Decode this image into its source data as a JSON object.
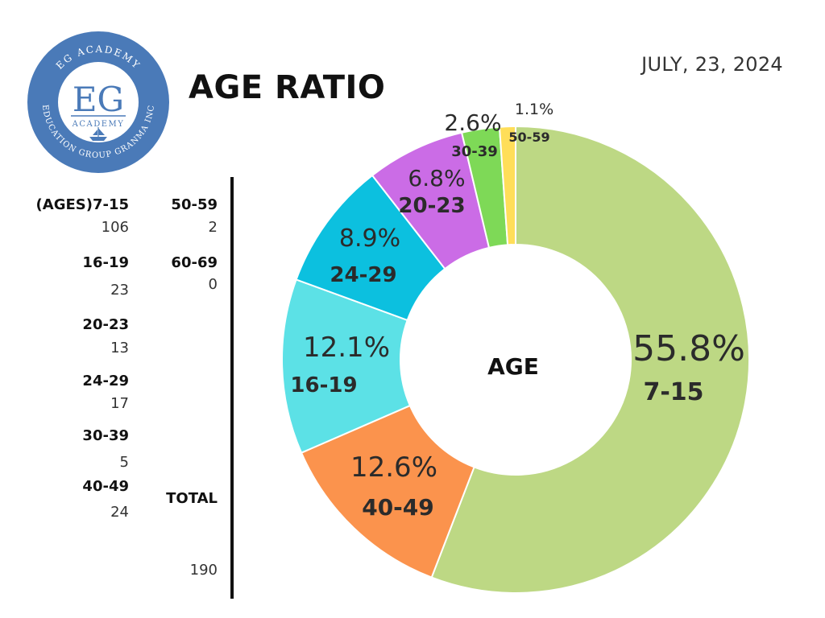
{
  "logo": {
    "top_text": "EG ACADEMY",
    "monogram": "EG",
    "sub_text": "ACADEMY",
    "ring_text": "EDUCATION GROUP GRANMA INC"
  },
  "title": "AGE RATIO",
  "date": "JULY, 23, 2024",
  "table": {
    "col1": [
      {
        "label": "(AGES)7-15",
        "value": "106"
      },
      {
        "label": "16-19",
        "value": "23"
      },
      {
        "label": "20-23",
        "value": "13"
      },
      {
        "label": "24-29",
        "value": "17"
      },
      {
        "label": "30-39",
        "value": "5"
      },
      {
        "label": "40-49",
        "value": "24"
      }
    ],
    "col2": [
      {
        "label": "50-59",
        "value": "2"
      },
      {
        "label": "60-69",
        "value": "0"
      }
    ],
    "total_label": "TOTAL",
    "total_value": "190"
  },
  "chart_data": {
    "type": "pie",
    "center_label": "AGE",
    "slices": [
      {
        "category": "7-15",
        "value": 55.8,
        "label": "55.8%",
        "color": "#bdd884"
      },
      {
        "category": "40-49",
        "value": 12.6,
        "label": "12.6%",
        "color": "#fb934d"
      },
      {
        "category": "16-19",
        "value": 12.1,
        "label": "12.1%",
        "color": "#5ce1e6"
      },
      {
        "category": "24-29",
        "value": 8.9,
        "label": "8.9%",
        "color": "#0cc0df"
      },
      {
        "category": "20-23",
        "value": 6.8,
        "label": "6.8%",
        "color": "#cb6ce6"
      },
      {
        "category": "30-39",
        "value": 2.6,
        "label": "2.6%",
        "color": "#7ed957"
      },
      {
        "category": "50-59",
        "value": 1.1,
        "label": "1.1%",
        "color": "#ffde59"
      }
    ]
  }
}
